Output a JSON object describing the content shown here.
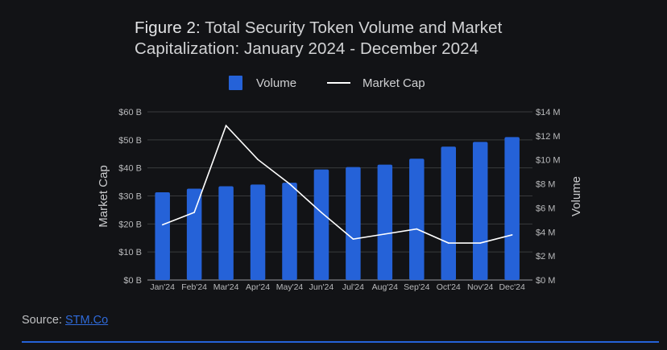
{
  "title": {
    "label": "Figure 2:",
    "text": "Total Security Token Volume and Market Capitalization: January 2024 - December 2024"
  },
  "legend": {
    "volume": "Volume",
    "market_cap": "Market Cap"
  },
  "source": {
    "label": "Source:",
    "link_text": "STM.Co"
  },
  "colors": {
    "background": "#121316",
    "bar": "#2562d8",
    "line": "#ffffff",
    "grid": "#3a3b3e",
    "accent_rule": "#2562d8"
  },
  "chart_data": {
    "type": "bar+line",
    "title": "Figure 2: Total Security Token Volume and Market Capitalization: January 2024 - December 2024",
    "categories": [
      "Jan'24",
      "Feb'24",
      "Mar'24",
      "Apr'24",
      "May'24",
      "Jun'24",
      "Jul'24",
      "Aug'24",
      "Sep'24",
      "Oct'24",
      "Nov'24",
      "Dec'24"
    ],
    "series": [
      {
        "name": "Volume",
        "type": "bar",
        "axis": "right",
        "unit": "$ M",
        "values": [
          7.3,
          7.6,
          7.8,
          7.95,
          8.1,
          9.2,
          9.4,
          9.6,
          10.1,
          11.1,
          11.5,
          11.9
        ]
      },
      {
        "name": "Market Cap",
        "type": "line",
        "axis": "left",
        "unit": "$ B",
        "values": [
          19.7,
          24.1,
          55.1,
          43.0,
          34.3,
          24.1,
          14.6,
          16.4,
          18.2,
          13.2,
          13.2,
          16.1
        ]
      }
    ],
    "left_axis": {
      "label": "Market Cap",
      "range": [
        0,
        60
      ],
      "ticks": [
        0,
        10,
        20,
        30,
        40,
        50,
        60
      ],
      "tick_labels": [
        "$0 B",
        "$10 B",
        "$20 B",
        "$30 B",
        "$40 B",
        "$50 B",
        "$60 B"
      ]
    },
    "right_axis": {
      "label": "Volume",
      "range": [
        0,
        14
      ],
      "ticks": [
        0,
        2,
        4,
        6,
        8,
        10,
        12,
        14
      ],
      "tick_labels": [
        "$0 M",
        "$2 M",
        "$4 M",
        "$6 M",
        "$8 M",
        "$10 M",
        "$12 M",
        "$14 M"
      ]
    },
    "grid": true,
    "legend_position": "top-center"
  }
}
